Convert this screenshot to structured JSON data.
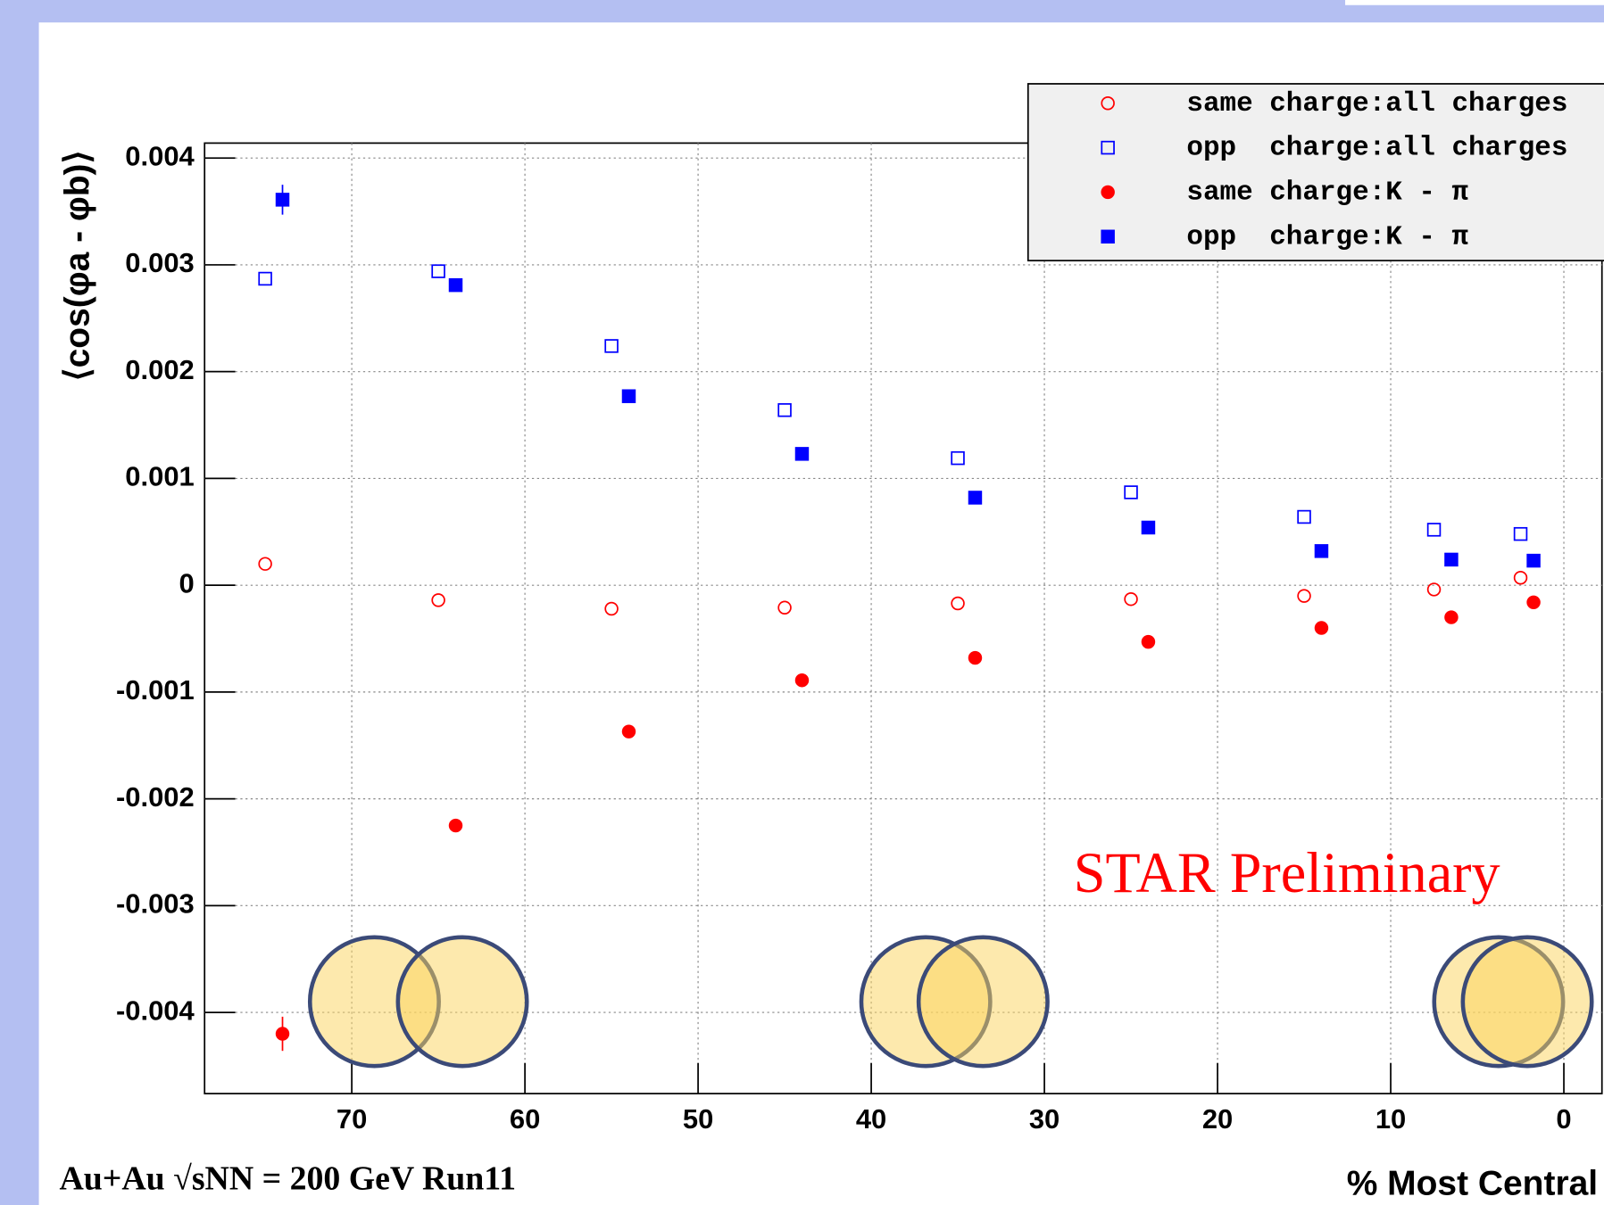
{
  "chart_data": {
    "type": "scatter",
    "y_label": "⟨cos(φa - φb)⟩",
    "x_label": "% Most Central",
    "annotation": "STAR Preliminary",
    "footer": "Au+Au √sNN = 200 GeV Run11",
    "xlim": [
      78.5,
      -2.2
    ],
    "xticks": [
      70,
      60,
      50,
      40,
      30,
      20,
      10,
      0
    ],
    "ylim": [
      -0.00476,
      0.00414
    ],
    "yticks": [
      0.004,
      0.003,
      0.002,
      0.001,
      0,
      -0.001,
      -0.002,
      -0.003,
      -0.004
    ],
    "grid": true,
    "series": [
      {
        "name": "same charge:all charges",
        "color": "#ff0000",
        "marker": "open-circle",
        "x": [
          75,
          65,
          55,
          45,
          35,
          25,
          15,
          7.5,
          2.5
        ],
        "values": [
          0.0002,
          -0.00014,
          -0.00022,
          -0.00021,
          -0.00017,
          -0.00013,
          -0.0001,
          -4e-05,
          7e-05
        ]
      },
      {
        "name": "opp  charge:all charges",
        "color": "#0000ff",
        "marker": "open-square",
        "x": [
          75,
          65,
          55,
          45,
          35,
          25,
          15,
          7.5,
          2.5
        ],
        "values": [
          0.00287,
          0.00294,
          0.00224,
          0.00164,
          0.00119,
          0.00087,
          0.00064,
          0.00052,
          0.00048
        ]
      },
      {
        "name": "same charge:K - π",
        "color": "#ff0000",
        "marker": "filled-circle",
        "x": [
          74,
          64,
          54,
          44,
          34,
          24,
          14,
          6.5,
          1.75
        ],
        "values": [
          -0.0042,
          -0.00225,
          -0.00137,
          -0.00089,
          -0.00068,
          -0.00053,
          -0.0004,
          -0.0003,
          -0.00016
        ],
        "errors": [
          0.00016,
          6e-05,
          null,
          null,
          null,
          null,
          null,
          null,
          null
        ]
      },
      {
        "name": "opp  charge:K - π",
        "color": "#0000ff",
        "marker": "filled-square",
        "x": [
          74,
          64,
          54,
          44,
          34,
          24,
          14,
          6.5,
          1.75
        ],
        "values": [
          0.00361,
          0.00281,
          0.00177,
          0.00123,
          0.00082,
          0.00054,
          0.00032,
          0.00024,
          0.00023
        ],
        "errors": [
          0.00014,
          5e-05,
          null,
          null,
          null,
          null,
          null,
          null,
          null
        ]
      }
    ]
  }
}
